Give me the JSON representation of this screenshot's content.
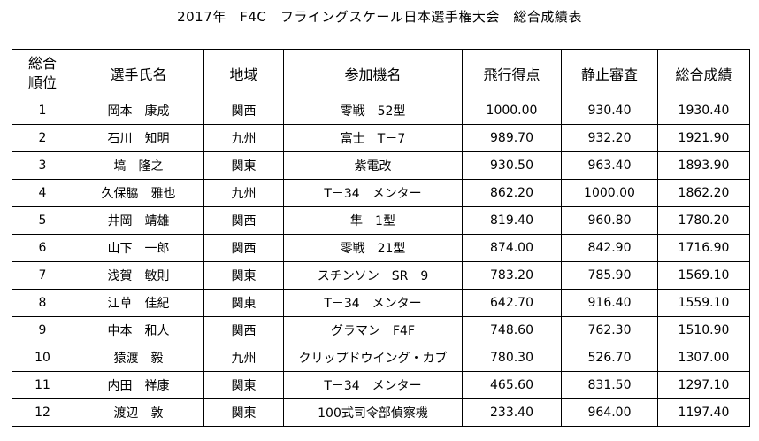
{
  "title": "2017年　F4C　フライングスケール日本選手権大会　総合成績表",
  "headers": {
    "rank_line1": "総合",
    "rank_line2": "順位",
    "name": "選手氏名",
    "region": "地域",
    "model": "参加機名",
    "flight": "飛行得点",
    "static": "静止審査",
    "total": "総合成績"
  },
  "rows": [
    {
      "rank": "1",
      "name": "岡本　康成",
      "region": "関西",
      "model": "零戦　52型",
      "flight": "1000.00",
      "static": "930.40",
      "total": "1930.40"
    },
    {
      "rank": "2",
      "name": "石川　知明",
      "region": "九州",
      "model": "富士　T－7",
      "flight": "989.70",
      "static": "932.20",
      "total": "1921.90"
    },
    {
      "rank": "3",
      "name": "塙　隆之",
      "region": "関東",
      "model": "紫電改",
      "flight": "930.50",
      "static": "963.40",
      "total": "1893.90"
    },
    {
      "rank": "4",
      "name": "久保脇　雅也",
      "region": "九州",
      "model": "T－34　メンター",
      "flight": "862.20",
      "static": "1000.00",
      "total": "1862.20"
    },
    {
      "rank": "5",
      "name": "井岡　靖雄",
      "region": "関西",
      "model": "隼　1型",
      "flight": "819.40",
      "static": "960.80",
      "total": "1780.20"
    },
    {
      "rank": "6",
      "name": "山下　一郎",
      "region": "関西",
      "model": "零戦　21型",
      "flight": "874.00",
      "static": "842.90",
      "total": "1716.90"
    },
    {
      "rank": "7",
      "name": "浅賀　敏則",
      "region": "関東",
      "model": "スチンソン　SR－9",
      "flight": "783.20",
      "static": "785.90",
      "total": "1569.10"
    },
    {
      "rank": "8",
      "name": "江草　佳紀",
      "region": "関東",
      "model": "T－34　メンター",
      "flight": "642.70",
      "static": "916.40",
      "total": "1559.10"
    },
    {
      "rank": "9",
      "name": "中本　和人",
      "region": "関西",
      "model": "グラマン　F4F",
      "flight": "748.60",
      "static": "762.30",
      "total": "1510.90"
    },
    {
      "rank": "10",
      "name": "猿渡　毅",
      "region": "九州",
      "model": "クリップドウイング・カブ",
      "flight": "780.30",
      "static": "526.70",
      "total": "1307.00"
    },
    {
      "rank": "11",
      "name": "内田　祥康",
      "region": "関東",
      "model": "T－34　メンター",
      "flight": "465.60",
      "static": "831.50",
      "total": "1297.10"
    },
    {
      "rank": "12",
      "name": "渡辺　敦",
      "region": "関東",
      "model": "100式司令部偵察機",
      "flight": "233.40",
      "static": "964.00",
      "total": "1197.40"
    }
  ]
}
